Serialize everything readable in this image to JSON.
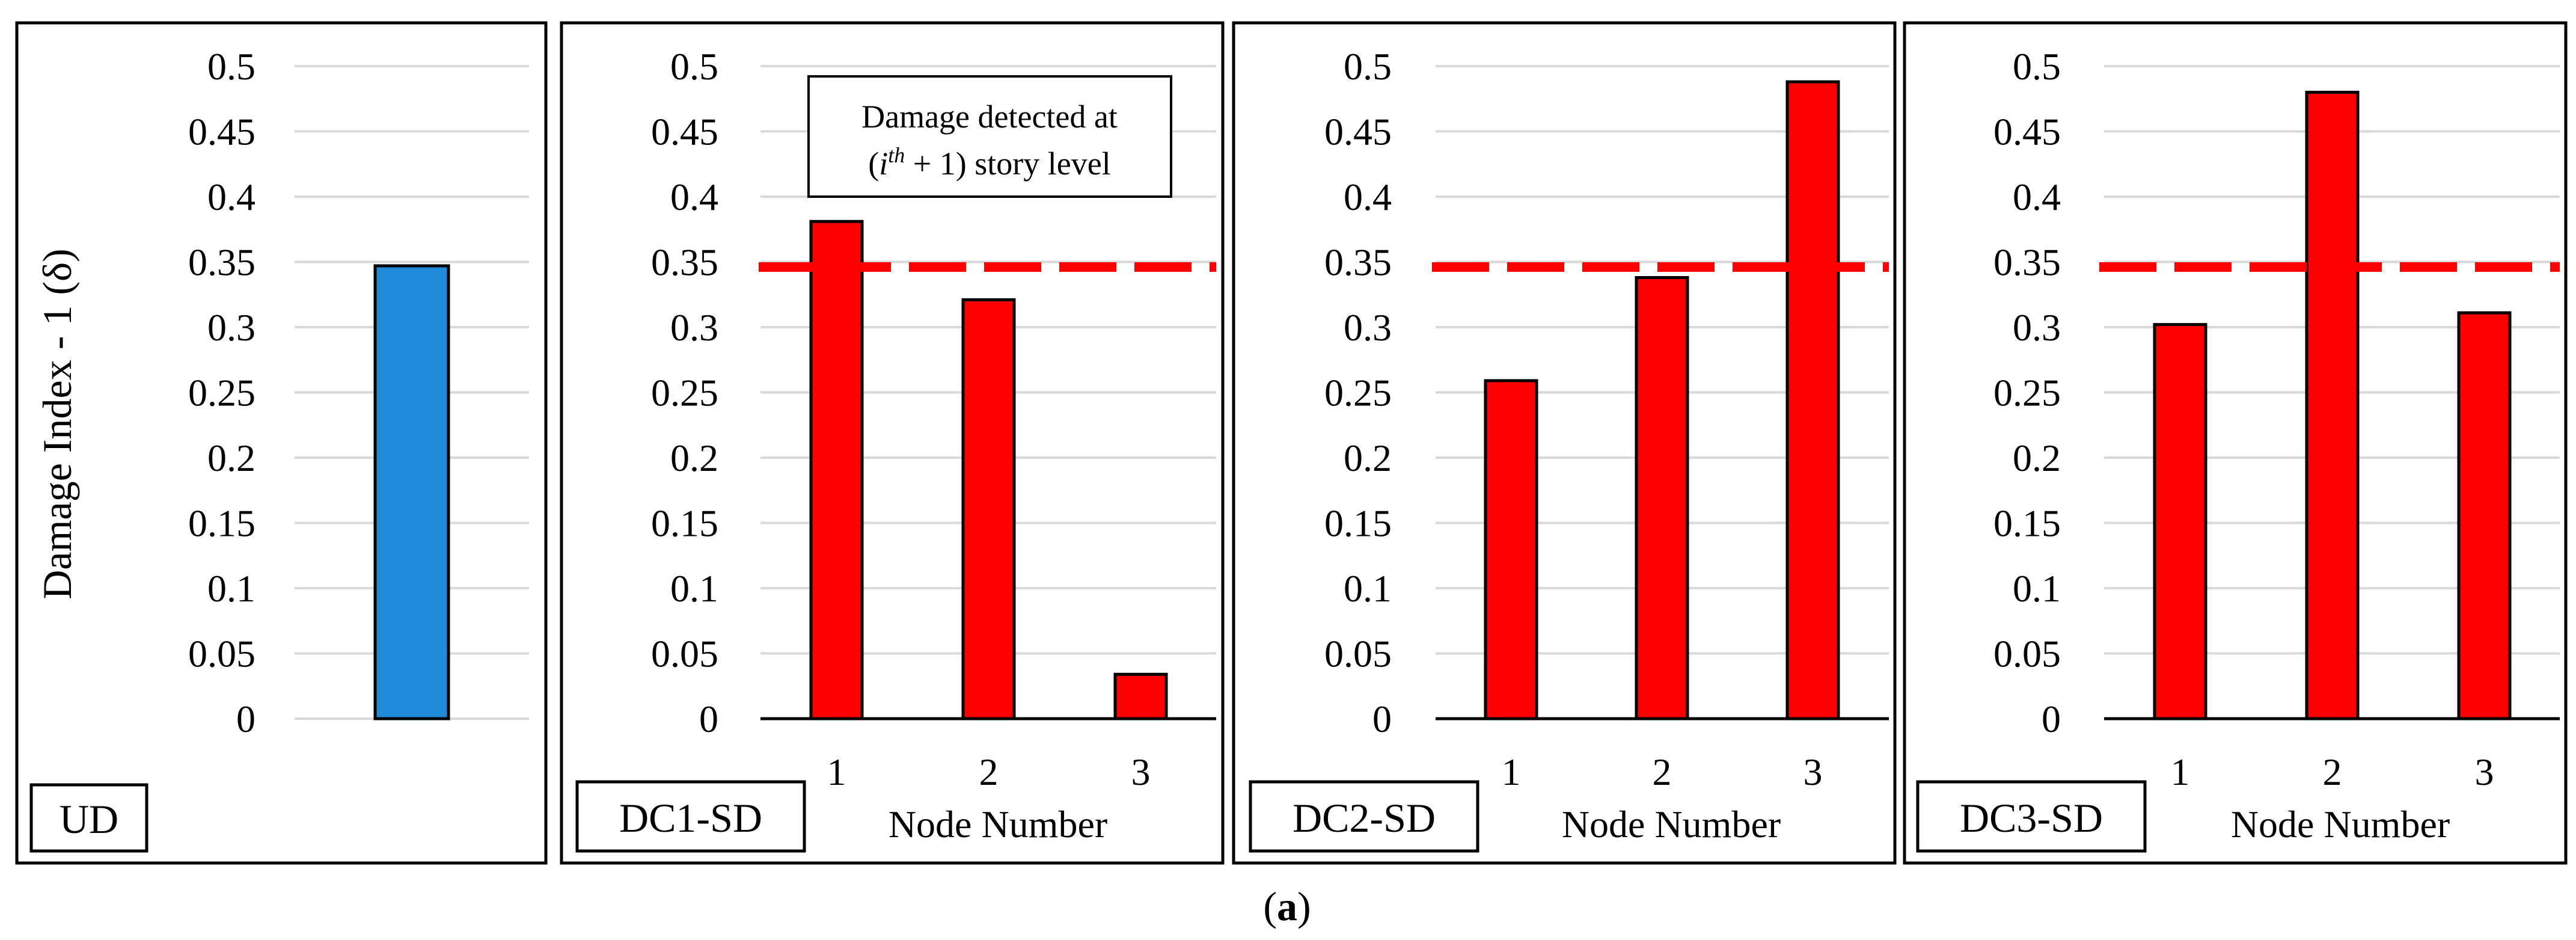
{
  "figure_label": {
    "open": "(",
    "letter": "a",
    "close": ")"
  },
  "colors": {
    "ud_bar": "#1f8bd8",
    "dc_bar": "#ff0000",
    "threshold": "#ff0000",
    "grid": "#d9d9d9"
  },
  "annotation": {
    "line1": "Damage detected at",
    "line2_open": "(",
    "line2_i": "i",
    "line2_sup": "th",
    "line2_rest": " + 1) story level"
  },
  "chart_data": [
    {
      "type": "bar",
      "panel_label": "UD",
      "ylabel": "Damage Index - 1 (δ)",
      "xlabel": "",
      "categories": [
        ""
      ],
      "values": [
        0.347
      ],
      "bar_color": "#1f8bd8",
      "ylim": [
        0,
        0.5
      ],
      "yticks": [
        "0",
        "0.05",
        "0.1",
        "0.15",
        "0.2",
        "0.25",
        "0.3",
        "0.35",
        "0.4",
        "0.45",
        "0.5"
      ],
      "grid": true
    },
    {
      "type": "bar",
      "panel_label": "DC1-SD",
      "xlabel": "Node Number",
      "categories": [
        "1",
        "2",
        "3"
      ],
      "values": [
        0.381,
        0.321,
        0.034
      ],
      "threshold": 0.347,
      "bar_color": "#ff0000",
      "ylim": [
        0,
        0.5
      ],
      "yticks": [
        "0",
        "0.05",
        "0.1",
        "0.15",
        "0.2",
        "0.25",
        "0.3",
        "0.35",
        "0.4",
        "0.45",
        "0.5"
      ],
      "grid": true
    },
    {
      "type": "bar",
      "panel_label": "DC2-SD",
      "xlabel": "Node Number",
      "categories": [
        "1",
        "2",
        "3"
      ],
      "values": [
        0.259,
        0.338,
        0.488
      ],
      "threshold": 0.347,
      "bar_color": "#ff0000",
      "ylim": [
        0,
        0.5
      ],
      "yticks": [
        "0",
        "0.05",
        "0.1",
        "0.15",
        "0.2",
        "0.25",
        "0.3",
        "0.35",
        "0.4",
        "0.45",
        "0.5"
      ],
      "grid": true
    },
    {
      "type": "bar",
      "panel_label": "DC3-SD",
      "xlabel": "Node Number",
      "categories": [
        "1",
        "2",
        "3"
      ],
      "values": [
        0.302,
        0.48,
        0.311
      ],
      "threshold": 0.347,
      "bar_color": "#ff0000",
      "ylim": [
        0,
        0.5
      ],
      "yticks": [
        "0",
        "0.05",
        "0.1",
        "0.15",
        "0.2",
        "0.25",
        "0.3",
        "0.35",
        "0.4",
        "0.45",
        "0.5"
      ],
      "grid": true
    }
  ]
}
